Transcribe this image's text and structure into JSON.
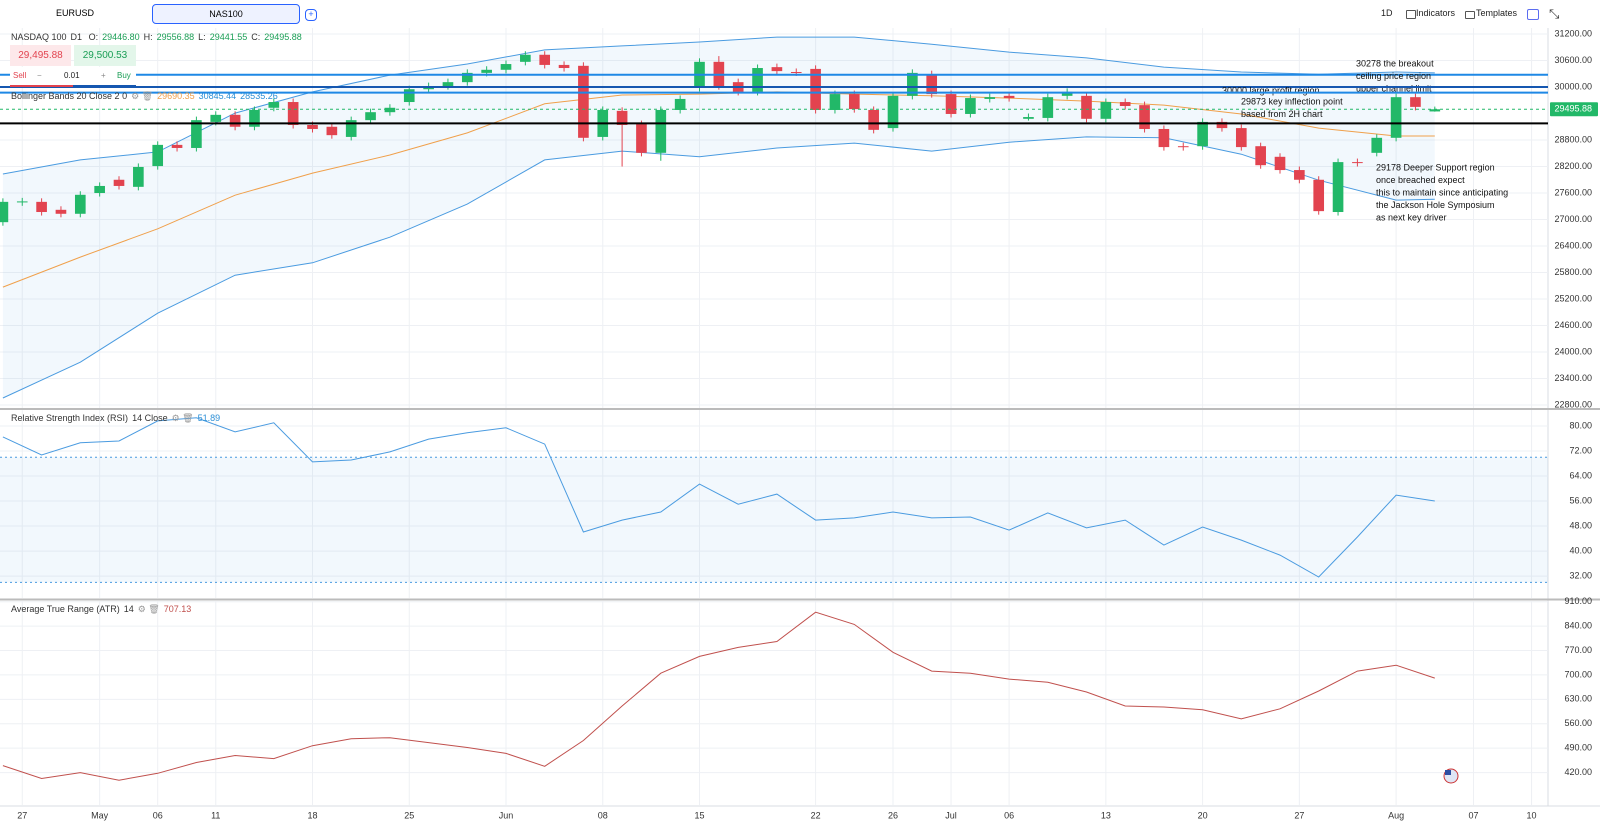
{
  "toolbar": {
    "tabs": [
      "EURUSD",
      "NAS100"
    ],
    "timeframe": "1D",
    "indicators": "Indicators",
    "templates": "Templates"
  },
  "trade": {
    "sell_price": "29,495.88",
    "sell": "Sell",
    "quantity": "0.01",
    "buy_price": "29,500.53",
    "buy": "Buy"
  },
  "chart_data": [
    {
      "type": "candlestick",
      "title": "NASDAQ 100",
      "interval": "D1",
      "legend": [
        "O:",
        "29446.80",
        "H:",
        "29556.88",
        "L:",
        "29441.55",
        "C:",
        "29495.88"
      ],
      "up_color": "#22b868",
      "down_color": "#e2434f",
      "open": [
        26940,
        27390,
        27400,
        27220,
        27130,
        27600,
        27900,
        27740,
        28210,
        28690,
        28620,
        29210,
        29370,
        29100,
        29530,
        29660,
        29140,
        29100,
        28870,
        29250,
        29430,
        29660,
        29950,
        30020,
        30110,
        30320,
        30390,
        30570,
        30730,
        30500,
        30480,
        28870,
        29460,
        29160,
        28510,
        29480,
        29980,
        30570,
        30110,
        29890,
        30450,
        30340,
        30410,
        29480,
        29840,
        29480,
        29070,
        29800,
        30290,
        29840,
        29390,
        29730,
        29800,
        29280,
        29300,
        29800,
        29800,
        29280,
        29660,
        29590,
        29050,
        28660,
        28660,
        29210,
        29070,
        28660,
        28420,
        28120,
        27900,
        27170,
        28300,
        28510,
        28850,
        29770,
        29446.8
      ],
      "high": [
        27480,
        27490,
        27480,
        27300,
        27640,
        27840,
        27980,
        28270,
        28770,
        28770,
        29330,
        29450,
        29450,
        29560,
        29740,
        29740,
        29220,
        29180,
        29330,
        29510,
        29610,
        30030,
        30100,
        30190,
        30400,
        30470,
        30600,
        30810,
        30810,
        30580,
        30560,
        29560,
        29540,
        29240,
        29560,
        29810,
        30650,
        30700,
        30190,
        30510,
        30530,
        30420,
        30490,
        29920,
        29920,
        29560,
        29880,
        30400,
        30370,
        29920,
        29830,
        29850,
        29880,
        29400,
        29850,
        29970,
        29880,
        29740,
        29740,
        29670,
        29130,
        28740,
        29290,
        29290,
        29150,
        28740,
        28500,
        28200,
        27980,
        28380,
        28380,
        28930,
        29850,
        29850,
        29556.88
      ],
      "low": [
        26860,
        27310,
        27090,
        27050,
        27050,
        27520,
        27680,
        27660,
        28130,
        28540,
        28540,
        29130,
        29020,
        29020,
        29450,
        29060,
        28970,
        28830,
        28790,
        29170,
        29350,
        29580,
        29870,
        29940,
        30030,
        30240,
        30310,
        30490,
        30420,
        30350,
        28770,
        28790,
        28200,
        28430,
        28330,
        29400,
        29900,
        29940,
        29810,
        29810,
        30280,
        30250,
        29400,
        29400,
        29420,
        28950,
        28990,
        29720,
        29760,
        29310,
        29310,
        29650,
        29670,
        29240,
        29220,
        29720,
        29200,
        29200,
        29490,
        28970,
        28560,
        28560,
        28580,
        28990,
        28560,
        28150,
        28040,
        27820,
        27110,
        27090,
        28200,
        28430,
        28770,
        29470,
        29441.55
      ],
      "close": [
        27400,
        27410,
        27170,
        27130,
        27560,
        27760,
        27760,
        28190,
        28690,
        28620,
        29250,
        29370,
        29100,
        29480,
        29660,
        29140,
        29050,
        28910,
        29250,
        29430,
        29530,
        29950,
        30020,
        30110,
        30320,
        30390,
        30520,
        30730,
        30500,
        30430,
        28850,
        29480,
        29140,
        28510,
        29480,
        29730,
        30570,
        30020,
        29890,
        30430,
        30360,
        30330,
        29480,
        29840,
        29500,
        29030,
        29800,
        30320,
        29840,
        29390,
        29750,
        29770,
        29750,
        29320,
        29770,
        29890,
        29280,
        29660,
        29570,
        29050,
        28640,
        28640,
        29210,
        29070,
        28640,
        28230,
        28120,
        27900,
        27190,
        28300,
        28280,
        28850,
        29770,
        29550,
        29495.88
      ],
      "bollinger": {
        "label": "Bollinger Bands 20 Close 2 0",
        "printed": [
          "29690.35",
          "30845.44",
          "28535.26"
        ],
        "printed_colors": [
          "#f0a04b",
          "#2c8fd6",
          "#2c8fd6"
        ],
        "x": [
          0,
          4,
          8,
          12,
          16,
          20,
          24,
          28,
          32,
          36,
          40,
          44,
          48,
          52,
          56,
          60,
          64,
          68,
          72,
          74
        ],
        "upper": [
          28030,
          28350,
          28530,
          29410,
          29890,
          30270,
          30520,
          30840,
          30930,
          31020,
          31130,
          31130,
          30970,
          30790,
          30660,
          30450,
          30340,
          30290,
          30340,
          30320
        ],
        "basis": [
          25470,
          26150,
          26790,
          27550,
          28050,
          28460,
          28960,
          29620,
          29820,
          29840,
          29890,
          29840,
          29800,
          29750,
          29680,
          29590,
          29390,
          29070,
          28890,
          28890
        ],
        "lower": [
          22960,
          23770,
          24880,
          25740,
          26020,
          26600,
          27350,
          28350,
          28550,
          28420,
          28620,
          28730,
          28550,
          28750,
          28870,
          28850,
          28480,
          27890,
          27440,
          27460
        ],
        "band_color": "#4a9be0",
        "basis_color": "#f0a04b"
      },
      "levels": [
        {
          "value": 30278,
          "color": "#1e88e5",
          "text": [
            "30278 the breakout",
            "ceiling price region",
            "upper channel limit"
          ]
        },
        {
          "value": 30000,
          "color": "#1557b0",
          "text": [
            "30000 large profit region"
          ]
        },
        {
          "value": 29873,
          "color": "#1e88e5",
          "text": [
            "29873 key inflection point",
            "based from 2H chart"
          ]
        },
        {
          "value": 29178,
          "color": "#000000",
          "text": [
            "29178 Deeper Support region",
            "once breached expect",
            "this to maintain since anticipating",
            "the Jackson Hole Symposium",
            "as next key driver"
          ]
        }
      ],
      "last_price": {
        "value": 29495.88,
        "label": "29495.88",
        "color": "#22b868"
      },
      "ylim": [
        22733,
        31336
      ],
      "yticks": [
        {
          "value": 31200,
          "label": "31200.00"
        },
        {
          "value": 30600,
          "label": "30600.00"
        },
        {
          "value": 30000,
          "label": "30000.00"
        },
        {
          "value": 28800,
          "label": "28800.00"
        },
        {
          "value": 28200,
          "label": "28200.00"
        },
        {
          "value": 27600,
          "label": "27600.00"
        },
        {
          "value": 27000,
          "label": "27000.00"
        },
        {
          "value": 26400,
          "label": "26400.00"
        },
        {
          "value": 25800,
          "label": "25800.00"
        },
        {
          "value": 25200,
          "label": "25200.00"
        },
        {
          "value": 24600,
          "label": "24600.00"
        },
        {
          "value": 24000,
          "label": "24000.00"
        },
        {
          "value": 23400,
          "label": "23400.00"
        },
        {
          "value": 22800,
          "label": "22800.00"
        }
      ],
      "xlim": [
        -0.15,
        79.85
      ],
      "xticks": [
        {
          "value": 1,
          "label": "27"
        },
        {
          "value": 5,
          "label": "May"
        },
        {
          "value": 8,
          "label": "06"
        },
        {
          "value": 11,
          "label": "11"
        },
        {
          "value": 16,
          "label": "18"
        },
        {
          "value": 21,
          "label": "25"
        },
        {
          "value": 26,
          "label": "Jun"
        },
        {
          "value": 31,
          "label": "08"
        },
        {
          "value": 36,
          "label": "15"
        },
        {
          "value": 42,
          "label": "22"
        },
        {
          "value": 46,
          "label": "26"
        },
        {
          "value": 49,
          "label": "Jul"
        },
        {
          "value": 52,
          "label": "06"
        },
        {
          "value": 57,
          "label": "13"
        },
        {
          "value": 62,
          "label": "20"
        },
        {
          "value": 67,
          "label": "27"
        },
        {
          "value": 72,
          "label": "Aug"
        },
        {
          "value": 76,
          "label": "07"
        },
        {
          "value": 79,
          "label": "10"
        }
      ],
      "grid": true
    },
    {
      "type": "line",
      "title": "Relative Strength Index (RSI)",
      "params": "14 Close",
      "printed": "51.89",
      "color": "#4a9be0",
      "x": [
        0,
        2,
        4,
        6,
        8,
        10,
        12,
        14,
        16,
        18,
        20,
        22,
        24,
        26,
        28,
        30,
        32,
        34,
        36,
        38,
        40,
        42,
        44,
        46,
        48,
        50,
        52,
        54,
        56,
        58,
        60,
        62,
        64,
        66,
        68,
        70,
        72,
        74
      ],
      "values": [
        76.5,
        70.7,
        74.6,
        75.2,
        81.6,
        82.6,
        78.1,
        81,
        68.5,
        69.1,
        71.7,
        75.8,
        77.8,
        79.4,
        74.2,
        46.1,
        49.9,
        52.5,
        61.4,
        55,
        58.2,
        49.9,
        50.6,
        52.5,
        50.6,
        50.9,
        46.7,
        52.2,
        47.4,
        49.9,
        41.9,
        47.7,
        43.5,
        38.7,
        31.7,
        44.5,
        57.9,
        56
      ],
      "levels": [
        70,
        30
      ],
      "ylim": [
        25,
        85.1
      ],
      "yticks": [
        {
          "value": 80,
          "label": "80.00"
        },
        {
          "value": 72,
          "label": "72.00"
        },
        {
          "value": 64,
          "label": "64.00"
        },
        {
          "value": 56,
          "label": "56.00"
        },
        {
          "value": 48,
          "label": "48.00"
        },
        {
          "value": 40,
          "label": "40.00"
        },
        {
          "value": 32,
          "label": "32.00"
        }
      ]
    },
    {
      "type": "line",
      "title": "Average True Range (ATR)",
      "params": "14",
      "printed": "707.13",
      "color": "#c0504d",
      "x": [
        0,
        2,
        4,
        6,
        8,
        10,
        12,
        14,
        16,
        18,
        20,
        22,
        24,
        26,
        28,
        30,
        32,
        34,
        36,
        38,
        40,
        42,
        44,
        46,
        48,
        50,
        52,
        54,
        56,
        58,
        60,
        62,
        64,
        66,
        68,
        70,
        72,
        74
      ],
      "values": [
        440,
        403,
        420,
        398,
        418,
        449,
        469,
        460,
        497,
        517,
        520,
        506,
        492,
        475,
        438,
        512,
        611,
        705,
        753,
        779,
        796,
        880,
        845,
        765,
        711,
        705,
        688,
        679,
        651,
        611,
        608,
        600,
        574,
        603,
        654,
        711,
        728,
        691
      ],
      "ylim": [
        327,
        912
      ],
      "yticks": [
        {
          "value": 910,
          "label": "910.00"
        },
        {
          "value": 840,
          "label": "840.00"
        },
        {
          "value": 770,
          "label": "770.00"
        },
        {
          "value": 700,
          "label": "700.00"
        },
        {
          "value": 630,
          "label": "630.00"
        },
        {
          "value": 560,
          "label": "560.00"
        },
        {
          "value": 490,
          "label": "490.00"
        },
        {
          "value": 420,
          "label": "420.00"
        }
      ]
    }
  ]
}
